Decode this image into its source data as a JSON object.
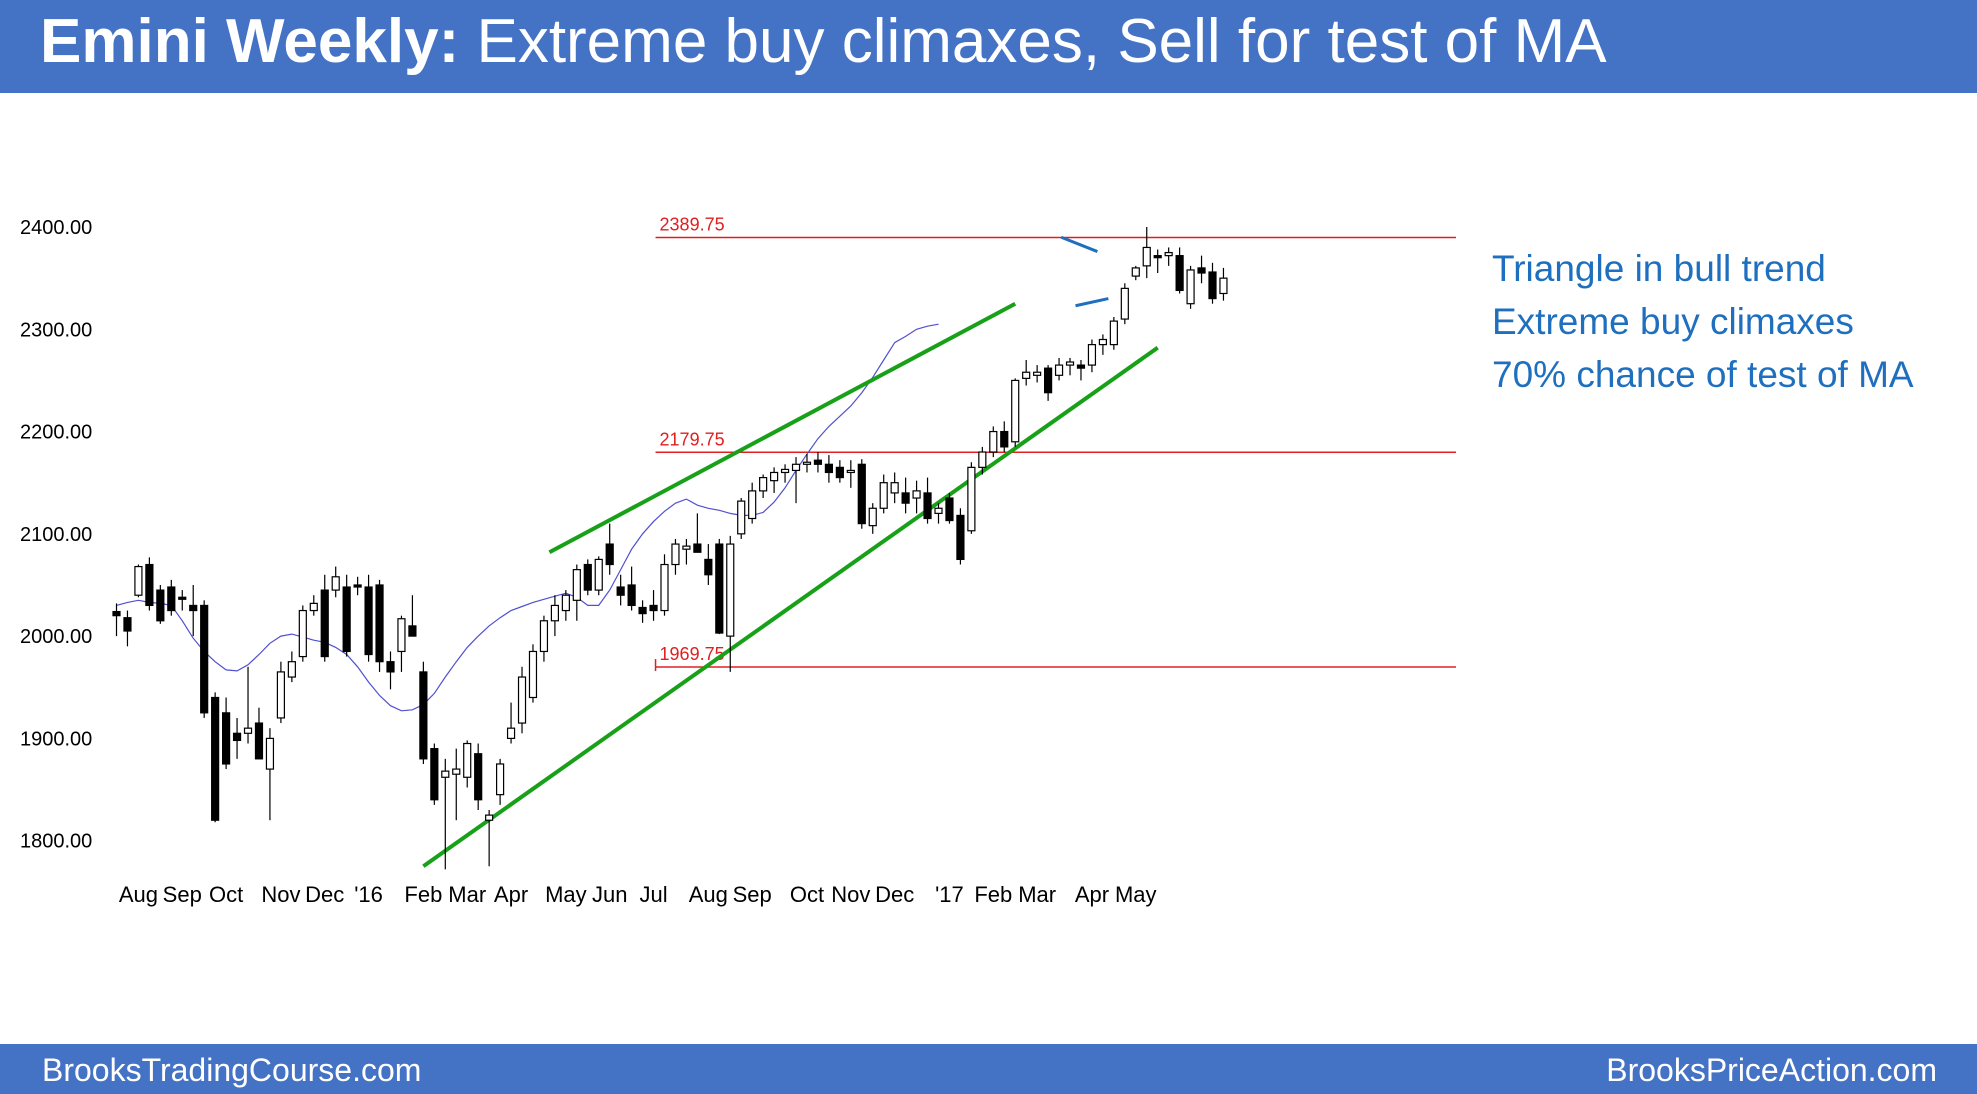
{
  "header": {
    "title_bold": "Emini Weekly:",
    "title_rest": " Extreme buy climaxes, Sell for test of MA"
  },
  "footer": {
    "left": "BrooksTradingCourse.com",
    "right": "BrooksPriceAction.com"
  },
  "notes": [
    "Triangle in bull trend",
    "Extreme buy climaxes",
    "70% chance of test of MA"
  ],
  "colors": {
    "header_bg": "#4472c4",
    "trendline": "#18a018",
    "level_line": "#e02020",
    "ma_line": "#5050d0",
    "triangle": "#1f6fbf",
    "note_text": "#1f6fbf"
  },
  "chart_data": {
    "type": "candlestick",
    "ylim": [
      1760,
      2420
    ],
    "yticks": [
      1800,
      1900,
      2000,
      2100,
      2200,
      2300,
      2400
    ],
    "ytick_labels": [
      "1800.00",
      "1900.00",
      "2000.00",
      "2100.00",
      "2200.00",
      "2300.00",
      "2400.00"
    ],
    "x_month_labels": [
      {
        "label": "Aug",
        "index": 2
      },
      {
        "label": "Sep",
        "index": 6
      },
      {
        "label": "Oct",
        "index": 10
      },
      {
        "label": "Nov",
        "index": 15
      },
      {
        "label": "Dec",
        "index": 19
      },
      {
        "label": "'16",
        "index": 23
      },
      {
        "label": "Feb",
        "index": 28
      },
      {
        "label": "Mar",
        "index": 32
      },
      {
        "label": "Apr",
        "index": 36
      },
      {
        "label": "May",
        "index": 41
      },
      {
        "label": "Jun",
        "index": 45
      },
      {
        "label": "Jul",
        "index": 49
      },
      {
        "label": "Aug",
        "index": 54
      },
      {
        "label": "Sep",
        "index": 58
      },
      {
        "label": "Oct",
        "index": 63
      },
      {
        "label": "Nov",
        "index": 67
      },
      {
        "label": "Dec",
        "index": 71
      },
      {
        "label": "'17",
        "index": 76
      },
      {
        "label": "Feb",
        "index": 80
      },
      {
        "label": "Mar",
        "index": 84
      },
      {
        "label": "Apr",
        "index": 89
      },
      {
        "label": "May",
        "index": 93
      }
    ],
    "levels": [
      {
        "label": "2389.75",
        "value": 2389.75,
        "from_index": 49
      },
      {
        "label": "2179.75",
        "value": 2179.75,
        "from_index": 49
      },
      {
        "label": "1969.75",
        "value": 1969.75,
        "from_index": 49
      }
    ],
    "trendlines": [
      {
        "from": [
          28,
          1775
        ],
        "to": [
          95,
          2282
        ]
      },
      {
        "from": [
          39.5,
          2082
        ],
        "to": [
          82,
          2325
        ]
      }
    ],
    "triangle": {
      "upper": [
        [
          86.2,
          2390
        ],
        [
          89.5,
          2376
        ]
      ],
      "lower": [
        [
          87.5,
          2323
        ],
        [
          90.5,
          2330
        ]
      ]
    },
    "ma": [
      2030,
      2033,
      2035,
      2033,
      2032,
      2030,
      2015,
      1998,
      1985,
      1975,
      1967,
      1966,
      1972,
      1982,
      1993,
      2000,
      2002,
      1999,
      1996,
      1994,
      1989,
      1982,
      1970,
      1955,
      1942,
      1932,
      1927,
      1928,
      1933,
      1944,
      1960,
      1975,
      1989,
      2000,
      2010,
      2018,
      2025,
      2029,
      2033,
      2036,
      2039,
      2042,
      2038,
      2030,
      2030,
      2045,
      2065,
      2085,
      2100,
      2112,
      2122,
      2130,
      2134,
      2128,
      2125,
      2123,
      2120,
      2118,
      2118,
      2121,
      2131,
      2145,
      2162,
      2178,
      2193,
      2205,
      2215,
      2225,
      2238,
      2253,
      2270,
      2287,
      2293,
      2300,
      2303,
      2305
    ],
    "candles": [
      {
        "o": 2024,
        "h": 2032,
        "l": 2000,
        "c": 2020
      },
      {
        "o": 2018,
        "h": 2025,
        "l": 1990,
        "c": 2005
      },
      {
        "o": 2040,
        "h": 2070,
        "l": 2038,
        "c": 2068
      },
      {
        "o": 2070,
        "h": 2077,
        "l": 2025,
        "c": 2030
      },
      {
        "o": 2045,
        "h": 2050,
        "l": 2012,
        "c": 2015
      },
      {
        "o": 2048,
        "h": 2055,
        "l": 2020,
        "c": 2025
      },
      {
        "o": 2038,
        "h": 2045,
        "l": 2025,
        "c": 2036
      },
      {
        "o": 2030,
        "h": 2050,
        "l": 2000,
        "c": 2025
      },
      {
        "o": 2030,
        "h": 2035,
        "l": 1920,
        "c": 1925
      },
      {
        "o": 1940,
        "h": 1945,
        "l": 1818,
        "c": 1820
      },
      {
        "o": 1925,
        "h": 1940,
        "l": 1870,
        "c": 1875
      },
      {
        "o": 1905,
        "h": 1920,
        "l": 1880,
        "c": 1898
      },
      {
        "o": 1905,
        "h": 1970,
        "l": 1895,
        "c": 1910
      },
      {
        "o": 1915,
        "h": 1930,
        "l": 1880,
        "c": 1880
      },
      {
        "o": 1870,
        "h": 1910,
        "l": 1820,
        "c": 1900
      },
      {
        "o": 1920,
        "h": 1975,
        "l": 1915,
        "c": 1965
      },
      {
        "o": 1960,
        "h": 1985,
        "l": 1955,
        "c": 1975
      },
      {
        "o": 1980,
        "h": 2030,
        "l": 1975,
        "c": 2025
      },
      {
        "o": 2025,
        "h": 2040,
        "l": 2020,
        "c": 2032
      },
      {
        "o": 2045,
        "h": 2060,
        "l": 1975,
        "c": 1980
      },
      {
        "o": 2045,
        "h": 2068,
        "l": 2038,
        "c": 2058
      },
      {
        "o": 2048,
        "h": 2060,
        "l": 1980,
        "c": 1985
      },
      {
        "o": 2050,
        "h": 2058,
        "l": 2040,
        "c": 2048
      },
      {
        "o": 2048,
        "h": 2060,
        "l": 1975,
        "c": 1982
      },
      {
        "o": 2050,
        "h": 2055,
        "l": 1965,
        "c": 1975
      },
      {
        "o": 1975,
        "h": 1985,
        "l": 1948,
        "c": 1965
      },
      {
        "o": 1985,
        "h": 2020,
        "l": 1965,
        "c": 2017
      },
      {
        "o": 2010,
        "h": 2040,
        "l": 2000,
        "c": 2000
      },
      {
        "o": 1965,
        "h": 1975,
        "l": 1875,
        "c": 1880
      },
      {
        "o": 1890,
        "h": 1895,
        "l": 1835,
        "c": 1840
      },
      {
        "o": 1862,
        "h": 1880,
        "l": 1772,
        "c": 1868
      },
      {
        "o": 1865,
        "h": 1890,
        "l": 1820,
        "c": 1870
      },
      {
        "o": 1862,
        "h": 1898,
        "l": 1852,
        "c": 1895
      },
      {
        "o": 1885,
        "h": 1895,
        "l": 1830,
        "c": 1840
      },
      {
        "o": 1820,
        "h": 1830,
        "l": 1775,
        "c": 1825
      },
      {
        "o": 1845,
        "h": 1880,
        "l": 1835,
        "c": 1875
      },
      {
        "o": 1900,
        "h": 1935,
        "l": 1895,
        "c": 1910
      },
      {
        "o": 1915,
        "h": 1970,
        "l": 1905,
        "c": 1960
      },
      {
        "o": 1940,
        "h": 1992,
        "l": 1935,
        "c": 1985
      },
      {
        "o": 1985,
        "h": 2020,
        "l": 1975,
        "c": 2015
      },
      {
        "o": 2015,
        "h": 2040,
        "l": 2000,
        "c": 2030
      },
      {
        "o": 2025,
        "h": 2045,
        "l": 2015,
        "c": 2040
      },
      {
        "o": 2035,
        "h": 2070,
        "l": 2015,
        "c": 2065
      },
      {
        "o": 2070,
        "h": 2075,
        "l": 2040,
        "c": 2045
      },
      {
        "o": 2045,
        "h": 2078,
        "l": 2040,
        "c": 2075
      },
      {
        "o": 2090,
        "h": 2110,
        "l": 2060,
        "c": 2070
      },
      {
        "o": 2048,
        "h": 2060,
        "l": 2030,
        "c": 2040
      },
      {
        "o": 2050,
        "h": 2068,
        "l": 2025,
        "c": 2030
      },
      {
        "o": 2028,
        "h": 2035,
        "l": 2013,
        "c": 2022
      },
      {
        "o": 2030,
        "h": 2045,
        "l": 2015,
        "c": 2025
      },
      {
        "o": 2025,
        "h": 2080,
        "l": 2020,
        "c": 2070
      },
      {
        "o": 2070,
        "h": 2095,
        "l": 2060,
        "c": 2090
      },
      {
        "o": 2085,
        "h": 2095,
        "l": 2070,
        "c": 2088
      },
      {
        "o": 2090,
        "h": 2120,
        "l": 2085,
        "c": 2082
      },
      {
        "o": 2075,
        "h": 2090,
        "l": 2050,
        "c": 2060
      },
      {
        "o": 2090,
        "h": 2095,
        "l": 2002,
        "c": 2003
      },
      {
        "o": 2000,
        "h": 2098,
        "l": 1965,
        "c": 2090
      },
      {
        "o": 2100,
        "h": 2135,
        "l": 2095,
        "c": 2132
      },
      {
        "o": 2115,
        "h": 2150,
        "l": 2110,
        "c": 2142
      },
      {
        "o": 2142,
        "h": 2158,
        "l": 2135,
        "c": 2155
      },
      {
        "o": 2152,
        "h": 2165,
        "l": 2140,
        "c": 2160
      },
      {
        "o": 2160,
        "h": 2168,
        "l": 2150,
        "c": 2163
      },
      {
        "o": 2162,
        "h": 2175,
        "l": 2130,
        "c": 2168
      },
      {
        "o": 2168,
        "h": 2178,
        "l": 2160,
        "c": 2170
      },
      {
        "o": 2172,
        "h": 2180,
        "l": 2160,
        "c": 2168
      },
      {
        "o": 2168,
        "h": 2177,
        "l": 2150,
        "c": 2160
      },
      {
        "o": 2165,
        "h": 2172,
        "l": 2150,
        "c": 2155
      },
      {
        "o": 2160,
        "h": 2172,
        "l": 2145,
        "c": 2162
      },
      {
        "o": 2168,
        "h": 2173,
        "l": 2105,
        "c": 2110
      },
      {
        "o": 2108,
        "h": 2130,
        "l": 2100,
        "c": 2125
      },
      {
        "o": 2125,
        "h": 2158,
        "l": 2120,
        "c": 2150
      },
      {
        "o": 2140,
        "h": 2160,
        "l": 2130,
        "c": 2150
      },
      {
        "o": 2140,
        "h": 2155,
        "l": 2120,
        "c": 2130
      },
      {
        "o": 2135,
        "h": 2152,
        "l": 2120,
        "c": 2142
      },
      {
        "o": 2140,
        "h": 2155,
        "l": 2110,
        "c": 2115
      },
      {
        "o": 2120,
        "h": 2130,
        "l": 2110,
        "c": 2125
      },
      {
        "o": 2135,
        "h": 2140,
        "l": 2110,
        "c": 2113
      },
      {
        "o": 2118,
        "h": 2125,
        "l": 2070,
        "c": 2075
      },
      {
        "o": 2103,
        "h": 2170,
        "l": 2100,
        "c": 2165
      },
      {
        "o": 2165,
        "h": 2185,
        "l": 2158,
        "c": 2180
      },
      {
        "o": 2180,
        "h": 2205,
        "l": 2175,
        "c": 2200
      },
      {
        "o": 2200,
        "h": 2210,
        "l": 2180,
        "c": 2185
      },
      {
        "o": 2190,
        "h": 2252,
        "l": 2185,
        "c": 2250
      },
      {
        "o": 2252,
        "h": 2270,
        "l": 2245,
        "c": 2258
      },
      {
        "o": 2255,
        "h": 2265,
        "l": 2248,
        "c": 2258
      },
      {
        "o": 2262,
        "h": 2265,
        "l": 2230,
        "c": 2238
      },
      {
        "o": 2255,
        "h": 2272,
        "l": 2250,
        "c": 2265
      },
      {
        "o": 2265,
        "h": 2272,
        "l": 2255,
        "c": 2268
      },
      {
        "o": 2265,
        "h": 2270,
        "l": 2250,
        "c": 2262
      },
      {
        "o": 2265,
        "h": 2290,
        "l": 2258,
        "c": 2285
      },
      {
        "o": 2285,
        "h": 2295,
        "l": 2275,
        "c": 2290
      },
      {
        "o": 2285,
        "h": 2312,
        "l": 2280,
        "c": 2308
      },
      {
        "o": 2310,
        "h": 2345,
        "l": 2305,
        "c": 2340
      },
      {
        "o": 2352,
        "h": 2362,
        "l": 2348,
        "c": 2360
      },
      {
        "o": 2362,
        "h": 2400,
        "l": 2350,
        "c": 2380
      },
      {
        "o": 2372,
        "h": 2378,
        "l": 2355,
        "c": 2370
      },
      {
        "o": 2372,
        "h": 2380,
        "l": 2362,
        "c": 2375
      },
      {
        "o": 2372,
        "h": 2380,
        "l": 2335,
        "c": 2338
      },
      {
        "o": 2325,
        "h": 2362,
        "l": 2320,
        "c": 2358
      },
      {
        "o": 2360,
        "h": 2372,
        "l": 2345,
        "c": 2355
      },
      {
        "o": 2356,
        "h": 2365,
        "l": 2325,
        "c": 2330
      },
      {
        "o": 2335,
        "h": 2360,
        "l": 2328,
        "c": 2350
      }
    ]
  }
}
